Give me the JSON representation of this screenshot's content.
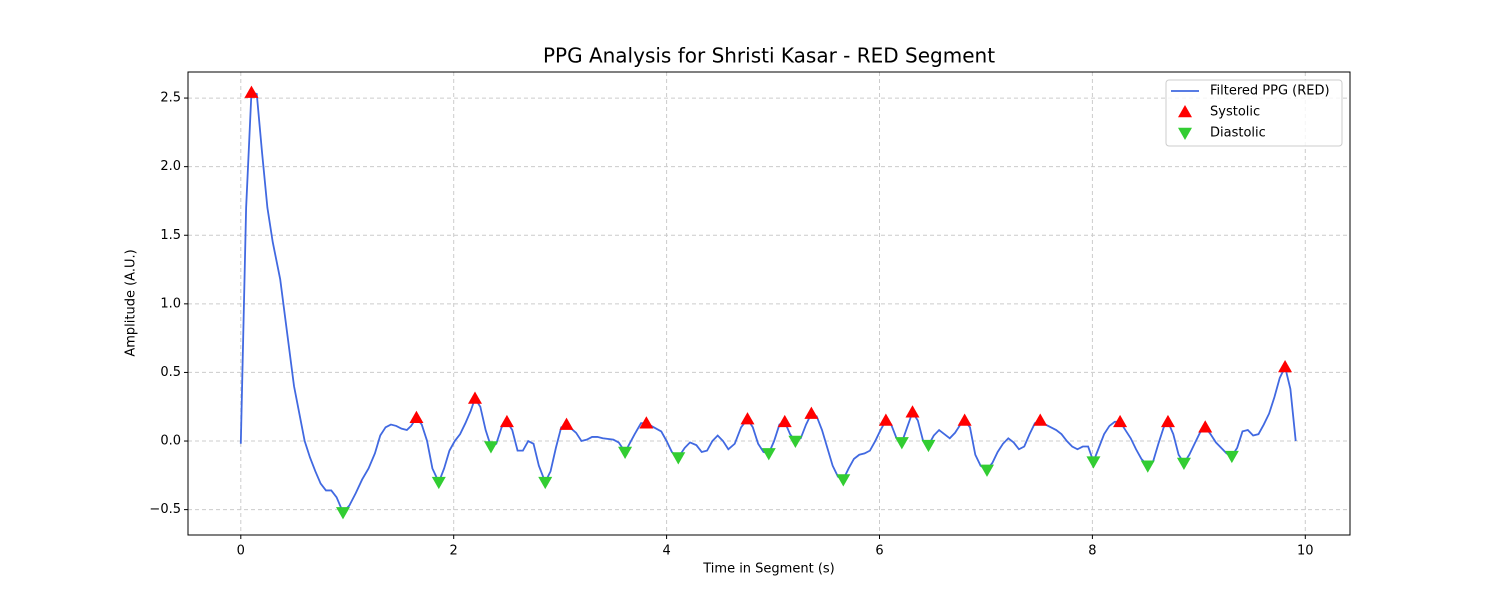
{
  "chart_data": {
    "type": "line",
    "title": "PPG Analysis for Shristi Kasar - RED Segment",
    "x_label": "Time in Segment (s)",
    "y_label": "Amplitude (A.U.)",
    "xlim": [
      -0.496,
      10.42
    ],
    "ylim": [
      -0.685,
      2.69
    ],
    "xticks": [
      0,
      2,
      4,
      6,
      8,
      10
    ],
    "yticks": [
      {
        "value": -0.5,
        "label": "−0.5"
      },
      {
        "value": 0,
        "label": "0.0"
      },
      {
        "value": 0.5,
        "label": "0.5"
      },
      {
        "value": 1,
        "label": "1.0"
      },
      {
        "value": 1.5,
        "label": "1.5"
      },
      {
        "value": 2,
        "label": "2.0"
      },
      {
        "value": 2.5,
        "label": "2.5"
      }
    ],
    "grid": true,
    "legend": "upper right",
    "series": [
      {
        "name": "Filtered PPG (RED)",
        "type": "line",
        "color": "#4169e1",
        "x": [
          0.0,
          0.05,
          0.1,
          0.15,
          0.2,
          0.25,
          0.3,
          0.37,
          0.45,
          0.5,
          0.55,
          0.6,
          0.65,
          0.7,
          0.75,
          0.8,
          0.85,
          0.9,
          0.96,
          1.02,
          1.08,
          1.14,
          1.2,
          1.26,
          1.31,
          1.36,
          1.41,
          1.46,
          1.51,
          1.56,
          1.6,
          1.65,
          1.7,
          1.75,
          1.8,
          1.86,
          1.91,
          1.96,
          2.01,
          2.06,
          2.11,
          2.16,
          2.2,
          2.25,
          2.3,
          2.35,
          2.4,
          2.45,
          2.5,
          2.55,
          2.6,
          2.65,
          2.7,
          2.75,
          2.8,
          2.86,
          2.91,
          2.96,
          3.01,
          3.06,
          3.15,
          3.2,
          3.25,
          3.3,
          3.35,
          3.4,
          3.5,
          3.55,
          3.61,
          3.7,
          3.76,
          3.81,
          3.88,
          3.95,
          4.0,
          4.05,
          4.11,
          4.17,
          4.22,
          4.28,
          4.33,
          4.38,
          4.43,
          4.48,
          4.53,
          4.58,
          4.64,
          4.7,
          4.76,
          4.81,
          4.86,
          4.91,
          4.96,
          5.01,
          5.06,
          5.11,
          5.16,
          5.21,
          5.26,
          5.31,
          5.36,
          5.41,
          5.46,
          5.51,
          5.56,
          5.61,
          5.66,
          5.71,
          5.76,
          5.81,
          5.86,
          5.91,
          5.96,
          6.01,
          6.06,
          6.11,
          6.16,
          6.21,
          6.26,
          6.31,
          6.36,
          6.41,
          6.46,
          6.51,
          6.56,
          6.61,
          6.66,
          6.71,
          6.76,
          6.8,
          6.85,
          6.9,
          6.95,
          7.01,
          7.06,
          7.11,
          7.16,
          7.21,
          7.26,
          7.31,
          7.36,
          7.41,
          7.46,
          7.51,
          7.56,
          7.61,
          7.66,
          7.71,
          7.76,
          7.81,
          7.86,
          7.91,
          7.96,
          8.01,
          8.06,
          8.11,
          8.16,
          8.21,
          8.26,
          8.31,
          8.36,
          8.41,
          8.46,
          8.52,
          8.57,
          8.62,
          8.67,
          8.71,
          8.76,
          8.81,
          8.86,
          8.91,
          8.96,
          9.01,
          9.06,
          9.11,
          9.16,
          9.21,
          9.26,
          9.31,
          9.36,
          9.41,
          9.46,
          9.51,
          9.56,
          9.61,
          9.66,
          9.71,
          9.76,
          9.81,
          9.86,
          9.91
        ],
        "values": [
          -0.02,
          1.7,
          2.54,
          2.53,
          2.1,
          1.7,
          1.45,
          1.18,
          0.7,
          0.4,
          0.2,
          0.0,
          -0.12,
          -0.22,
          -0.31,
          -0.36,
          -0.36,
          -0.41,
          -0.52,
          -0.47,
          -0.38,
          -0.28,
          -0.2,
          -0.09,
          0.04,
          0.1,
          0.12,
          0.11,
          0.09,
          0.08,
          0.11,
          0.17,
          0.12,
          0.0,
          -0.2,
          -0.3,
          -0.2,
          -0.07,
          0.0,
          0.05,
          0.13,
          0.22,
          0.31,
          0.25,
          0.08,
          -0.04,
          -0.02,
          0.1,
          0.14,
          0.08,
          -0.07,
          -0.07,
          0.0,
          -0.02,
          -0.18,
          -0.3,
          -0.22,
          -0.05,
          0.1,
          0.12,
          0.06,
          0.0,
          0.01,
          0.03,
          0.03,
          0.02,
          0.01,
          -0.01,
          -0.08,
          0.05,
          0.13,
          0.13,
          0.1,
          0.07,
          0.0,
          -0.08,
          -0.12,
          -0.05,
          -0.01,
          -0.03,
          -0.08,
          -0.07,
          0.0,
          0.04,
          0.0,
          -0.06,
          -0.02,
          0.1,
          0.16,
          0.1,
          -0.02,
          -0.08,
          -0.09,
          0.0,
          0.12,
          0.14,
          0.05,
          0.0,
          0.02,
          0.12,
          0.2,
          0.18,
          0.08,
          -0.05,
          -0.18,
          -0.26,
          -0.28,
          -0.2,
          -0.13,
          -0.1,
          -0.09,
          -0.07,
          0.0,
          0.08,
          0.15,
          0.12,
          0.02,
          -0.01,
          0.1,
          0.21,
          0.15,
          0.0,
          -0.03,
          0.04,
          0.08,
          0.05,
          0.02,
          0.06,
          0.12,
          0.15,
          0.1,
          -0.1,
          -0.18,
          -0.21,
          -0.16,
          -0.08,
          -0.02,
          0.02,
          -0.01,
          -0.06,
          -0.04,
          0.05,
          0.13,
          0.15,
          0.12,
          0.1,
          0.08,
          0.05,
          0.0,
          -0.04,
          -0.06,
          -0.04,
          -0.04,
          -0.15,
          -0.05,
          0.05,
          0.11,
          0.14,
          0.14,
          0.08,
          0.02,
          -0.06,
          -0.13,
          -0.18,
          -0.15,
          -0.02,
          0.1,
          0.14,
          0.05,
          -0.1,
          -0.16,
          -0.1,
          -0.02,
          0.06,
          0.1,
          0.05,
          -0.01,
          -0.05,
          -0.09,
          -0.11,
          -0.05,
          0.07,
          0.08,
          0.04,
          0.05,
          0.12,
          0.2,
          0.32,
          0.46,
          0.54,
          0.38,
          0.0
        ]
      },
      {
        "name": "Systolic",
        "type": "scatter",
        "marker": "triangle-up",
        "color": "#ff0000",
        "x": [
          0.1,
          1.65,
          2.2,
          2.5,
          3.06,
          3.81,
          4.76,
          5.11,
          5.36,
          6.06,
          6.31,
          6.8,
          7.51,
          8.26,
          8.71,
          9.06,
          9.81
        ],
        "values": [
          2.54,
          0.17,
          0.31,
          0.14,
          0.12,
          0.13,
          0.16,
          0.14,
          0.2,
          0.15,
          0.21,
          0.15,
          0.15,
          0.14,
          0.14,
          0.1,
          0.54
        ]
      },
      {
        "name": "Diastolic",
        "type": "scatter",
        "marker": "triangle-down",
        "color": "#32cd32",
        "x": [
          0.96,
          1.86,
          2.35,
          2.86,
          3.61,
          4.11,
          4.96,
          5.21,
          5.66,
          6.21,
          6.46,
          7.01,
          8.01,
          8.52,
          8.86,
          9.31
        ],
        "values": [
          -0.52,
          -0.3,
          -0.04,
          -0.3,
          -0.08,
          -0.12,
          -0.09,
          0.0,
          -0.28,
          -0.01,
          -0.03,
          -0.21,
          -0.15,
          -0.18,
          -0.16,
          -0.11
        ]
      }
    ]
  }
}
